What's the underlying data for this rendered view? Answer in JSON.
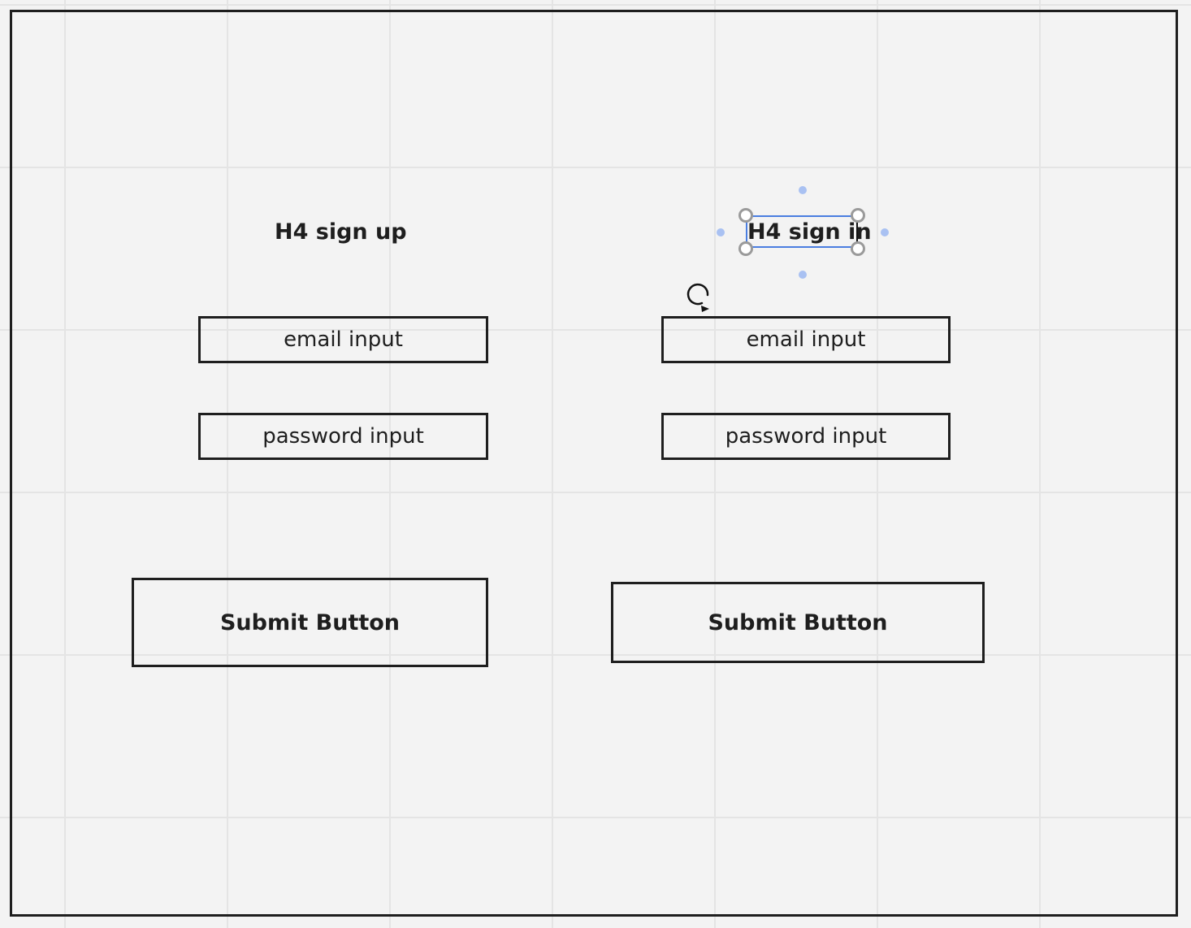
{
  "canvas": {
    "signup": {
      "heading": "H4 sign up",
      "email_label": "email input",
      "password_label": "password input",
      "submit_label": "Submit Button"
    },
    "signin": {
      "heading": "H4 sign in",
      "email_label": "email input",
      "password_label": "password input",
      "submit_label": "Submit Button"
    }
  },
  "colors": {
    "canvas_background": "#f3f3f3",
    "grid_line": "#e4e4e4",
    "stroke": "#1e1e1e",
    "selection": "#4a7ee0",
    "selection_dot": "#a9c1f2"
  },
  "icons": {
    "cursor": "rotate-cursor-icon"
  }
}
